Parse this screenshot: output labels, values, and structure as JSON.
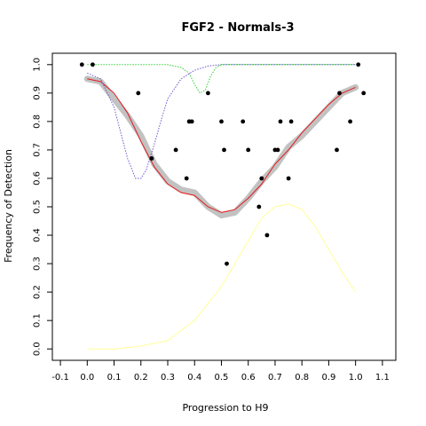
{
  "chart_data": {
    "type": "scatter",
    "title": "FGF2 - Normals-3",
    "xlabel": "Progression to H9",
    "ylabel": "Frequency of Detection",
    "xlim": [
      -0.13,
      1.15
    ],
    "ylim": [
      -0.04,
      1.04
    ],
    "x_ticks": [
      -0.1,
      0,
      0.1,
      0.2,
      0.3,
      0.4,
      0.5,
      0.6,
      0.7,
      0.8,
      0.9,
      1.0,
      1.1
    ],
    "x_tick_labels": [
      "-0.1",
      "0.0",
      "0.1",
      "0.2",
      "0.3",
      "0.4",
      "0.5",
      "0.6",
      "0.7",
      "0.8",
      "0.9",
      "1.0",
      "1.1"
    ],
    "y_ticks": [
      0,
      0.1,
      0.2,
      0.3,
      0.4,
      0.5,
      0.6,
      0.7,
      0.8,
      0.9,
      1.0
    ],
    "y_tick_labels": [
      "0.0",
      "0.1",
      "0.2",
      "0.3",
      "0.4",
      "0.5",
      "0.6",
      "0.7",
      "0.8",
      "0.9",
      "1.0"
    ],
    "grid": false,
    "legend": "none",
    "series": [
      {
        "style": "points",
        "color": "#000000",
        "x": [
          -0.02,
          0.02,
          0.19,
          0.24,
          0.33,
          0.37,
          0.38,
          0.38,
          0.39,
          0.45,
          0.5,
          0.51,
          0.52,
          0.58,
          0.6,
          0.64,
          0.65,
          0.67,
          0.7,
          0.71,
          0.72,
          0.75,
          0.76,
          0.93,
          0.94,
          0.98,
          1.01,
          1.03
        ],
        "y": [
          1.0,
          1.0,
          0.9,
          0.67,
          0.7,
          0.6,
          0.8,
          0.8,
          0.8,
          0.9,
          0.8,
          0.7,
          0.3,
          0.8,
          0.7,
          0.5,
          0.6,
          0.4,
          0.7,
          0.7,
          0.8,
          0.6,
          0.8,
          0.7,
          0.9,
          0.8,
          1.0,
          0.9
        ]
      },
      {
        "style": "band",
        "color": "#bbbbbb",
        "x": [
          0.0,
          0.05,
          0.1,
          0.15,
          0.2,
          0.25,
          0.3,
          0.35,
          0.4,
          0.45,
          0.5,
          0.55,
          0.6,
          0.65,
          0.7,
          0.75,
          0.8,
          0.85,
          0.9,
          0.95,
          1.0
        ],
        "y": [
          0.95,
          0.94,
          0.88,
          0.82,
          0.75,
          0.65,
          0.59,
          0.56,
          0.55,
          0.5,
          0.47,
          0.48,
          0.53,
          0.59,
          0.64,
          0.71,
          0.75,
          0.8,
          0.85,
          0.9,
          0.92
        ]
      },
      {
        "style": "line",
        "color": "#e31a1c",
        "x": [
          0.0,
          0.05,
          0.1,
          0.15,
          0.2,
          0.25,
          0.3,
          0.35,
          0.4,
          0.45,
          0.5,
          0.55,
          0.6,
          0.65,
          0.7,
          0.75,
          0.8,
          0.85,
          0.9,
          0.95,
          1.0
        ],
        "y": [
          0.95,
          0.94,
          0.9,
          0.83,
          0.73,
          0.64,
          0.58,
          0.55,
          0.54,
          0.5,
          0.48,
          0.49,
          0.53,
          0.58,
          0.65,
          0.7,
          0.76,
          0.81,
          0.86,
          0.9,
          0.92
        ]
      },
      {
        "style": "dotted",
        "color": "#6a5acd",
        "x": [
          0.0,
          0.05,
          0.1,
          0.15,
          0.18,
          0.2,
          0.22,
          0.25,
          0.28,
          0.3,
          0.35,
          0.4,
          0.45,
          0.5,
          0.6,
          0.7,
          0.8,
          0.9,
          1.0
        ],
        "y": [
          0.97,
          0.95,
          0.85,
          0.67,
          0.6,
          0.6,
          0.63,
          0.72,
          0.82,
          0.88,
          0.95,
          0.98,
          0.995,
          1.0,
          1.0,
          1.0,
          1.0,
          1.0,
          1.0
        ]
      },
      {
        "style": "dotted",
        "color": "#33cc33",
        "x": [
          0.0,
          0.1,
          0.2,
          0.3,
          0.35,
          0.38,
          0.4,
          0.42,
          0.44,
          0.46,
          0.48,
          0.5,
          0.6,
          0.7,
          0.8,
          0.9,
          1.0
        ],
        "y": [
          1.0,
          1.0,
          1.0,
          1.0,
          0.99,
          0.97,
          0.93,
          0.9,
          0.91,
          0.96,
          0.99,
          1.0,
          1.0,
          1.0,
          1.0,
          1.0,
          1.0
        ]
      },
      {
        "style": "line",
        "color": "#ffff99",
        "x": [
          0.0,
          0.1,
          0.2,
          0.3,
          0.4,
          0.5,
          0.55,
          0.6,
          0.65,
          0.7,
          0.75,
          0.8,
          0.85,
          0.9,
          0.95,
          1.0
        ],
        "y": [
          0.0,
          0.0,
          0.01,
          0.03,
          0.1,
          0.22,
          0.3,
          0.38,
          0.46,
          0.5,
          0.51,
          0.49,
          0.43,
          0.35,
          0.27,
          0.2
        ]
      }
    ]
  }
}
